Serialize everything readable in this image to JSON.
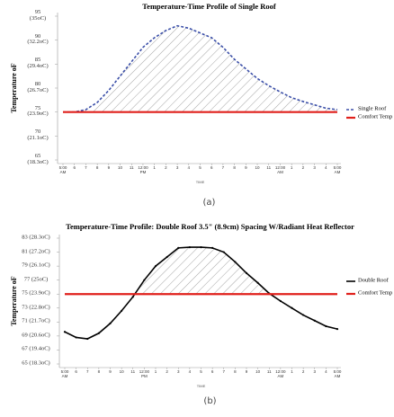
{
  "chart_data": [
    {
      "type": "line",
      "title": "Temperature-Time Profile of Single  Roof",
      "y_label": "Temperature oF",
      "x_label": "TIME",
      "caption": "(a)",
      "categories": [
        "5:00\nAM",
        "6",
        "7",
        "8",
        "9",
        "10",
        "11",
        "12:00\nPM",
        "1",
        "2",
        "3",
        "4",
        "5",
        "6",
        "7",
        "8",
        "9",
        "10",
        "11",
        "12:00\nAM",
        "1",
        "2",
        "3",
        "4",
        "5:00\nAM"
      ],
      "series": [
        {
          "name": "Single Roof",
          "color": "#3b4fa8",
          "dashed": true,
          "values": [
            75,
            75,
            75.5,
            77,
            79.5,
            82.5,
            85.5,
            88.5,
            90.5,
            92,
            93,
            92.5,
            91.5,
            90.5,
            88.5,
            86,
            84,
            82,
            80.5,
            79.2,
            78,
            77.2,
            76.5,
            75.8,
            75.5
          ]
        },
        {
          "name": "Comfort Temp",
          "color": "#e0201b",
          "dashed": false,
          "values": [
            75,
            75,
            75,
            75,
            75,
            75,
            75,
            75,
            75,
            75,
            75,
            75,
            75,
            75,
            75,
            75,
            75,
            75,
            75,
            75,
            75,
            75,
            75,
            75,
            75
          ]
        }
      ],
      "ylim": [
        65,
        95
      ],
      "yticks": [
        {
          "value": 65,
          "label": "65\n(18.3oC)"
        },
        {
          "value": 70,
          "label": "70\n(21.1oC)"
        },
        {
          "value": 75,
          "label": "75\n(23.9oC)"
        },
        {
          "value": 80,
          "label": "80\n(26.7oC)"
        },
        {
          "value": 85,
          "label": "85\n(29.4oC)"
        },
        {
          "value": 90,
          "label": "90\n(32.2oC)"
        },
        {
          "value": 95,
          "label": "95\n(35oC)"
        }
      ]
    },
    {
      "type": "line",
      "title": "Temperature-Time Profile: Double Roof 3.5\" (8.9cm) Spacing W/Radiant Heat Reflector",
      "y_label": "Temperature oF",
      "x_label": "TIME",
      "caption": "(b)",
      "categories": [
        "5:00\nAM",
        "6",
        "7",
        "8",
        "9",
        "10",
        "11",
        "12:00\nPM",
        "1",
        "2",
        "3",
        "4",
        "5",
        "6",
        "7",
        "8",
        "9",
        "10",
        "11",
        "12:00\nAM",
        "1",
        "2",
        "3",
        "4",
        "5:00\nAM"
      ],
      "series": [
        {
          "name": "Double Roof",
          "color": "#000000",
          "dashed": false,
          "values": [
            69.6,
            68.8,
            68.6,
            69.4,
            70.8,
            72.6,
            74.6,
            77,
            79,
            80.3,
            81.6,
            81.7,
            81.7,
            81.6,
            81,
            79.6,
            78,
            76.6,
            75.1,
            74,
            73,
            72,
            71.2,
            70.4,
            70
          ]
        },
        {
          "name": "Comfort Temp",
          "color": "#e0201b",
          "dashed": false,
          "values": [
            75,
            75,
            75,
            75,
            75,
            75,
            75,
            75,
            75,
            75,
            75,
            75,
            75,
            75,
            75,
            75,
            75,
            75,
            75,
            75,
            75,
            75,
            75,
            75,
            75
          ]
        }
      ],
      "ylim": [
        65,
        83
      ],
      "yticks": [
        {
          "value": 65,
          "label": "65 (18.3oC)"
        },
        {
          "value": 67,
          "label": "67 (19.4oC)"
        },
        {
          "value": 69,
          "label": "69 (20.6oC)"
        },
        {
          "value": 71,
          "label": "71 (21.7oC)"
        },
        {
          "value": 73,
          "label": "73 (22.8oC)"
        },
        {
          "value": 75,
          "label": "75 (23.9oC)"
        },
        {
          "value": 77,
          "label": "77 (25oC)"
        },
        {
          "value": 79,
          "label": "79 (26.1oC)"
        },
        {
          "value": 81,
          "label": "81 (27.2oC)"
        },
        {
          "value": 83,
          "label": "83 (28.3oC)"
        }
      ]
    }
  ]
}
